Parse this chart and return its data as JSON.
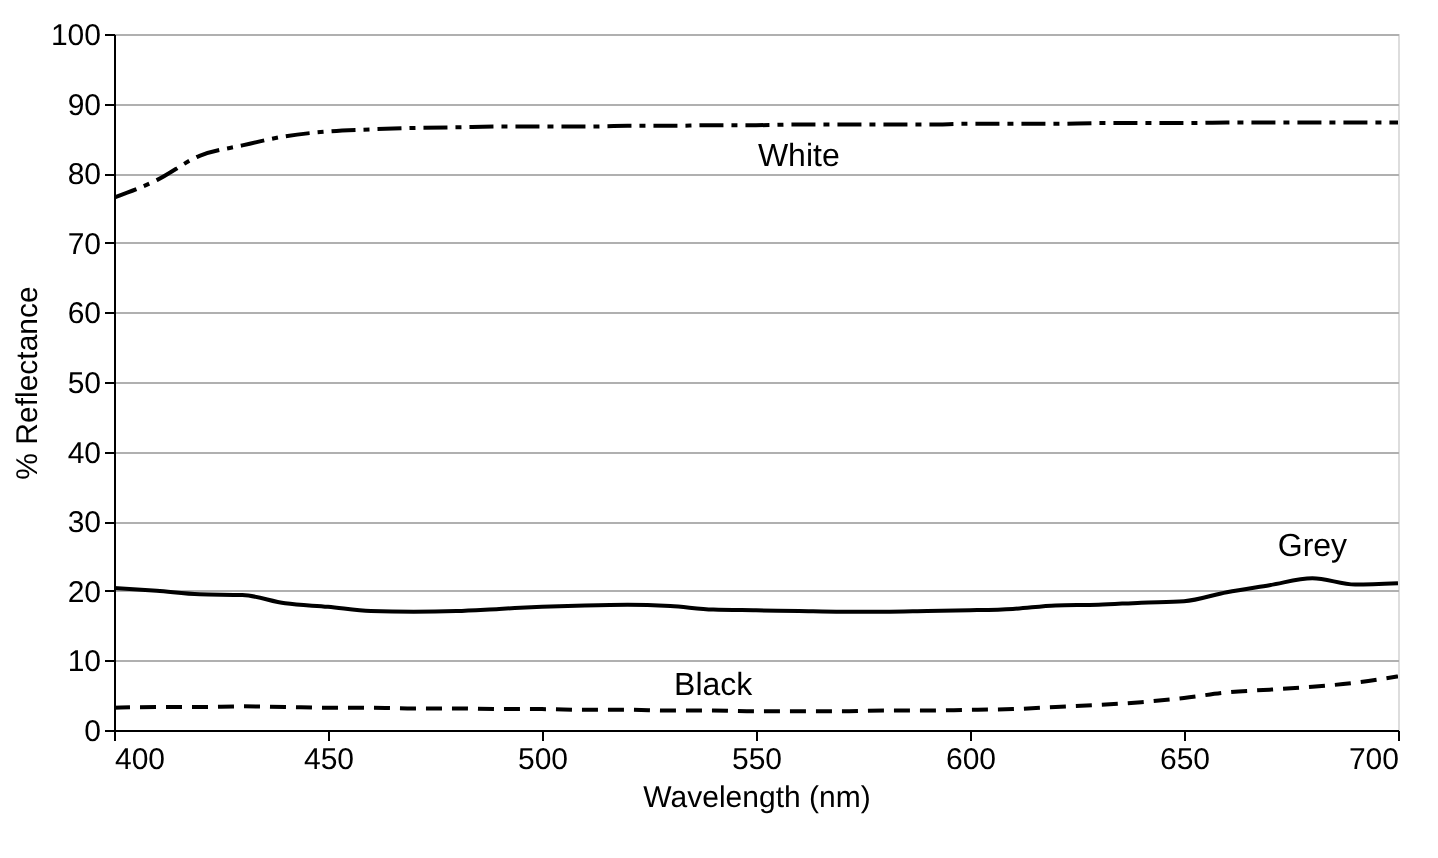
{
  "chart_data": {
    "type": "line",
    "xlabel": "Wavelength (nm)",
    "ylabel": "% Reflectance",
    "x": [
      400,
      410,
      420,
      430,
      440,
      450,
      460,
      470,
      480,
      490,
      500,
      510,
      520,
      530,
      540,
      550,
      560,
      570,
      580,
      590,
      600,
      610,
      620,
      630,
      640,
      650,
      660,
      670,
      680,
      690,
      700
    ],
    "series": [
      {
        "name": "White",
        "color": "#000000",
        "line_style": "dashdot",
        "values": [
          76.5,
          79,
          82.5,
          84,
          85.3,
          86,
          86.3,
          86.5,
          86.6,
          86.7,
          86.7,
          86.7,
          86.8,
          86.8,
          86.9,
          86.9,
          87,
          87,
          87,
          87,
          87.1,
          87.1,
          87.1,
          87.2,
          87.2,
          87.2,
          87.3,
          87.3,
          87.3,
          87.3,
          87.3
        ]
      },
      {
        "name": "Grey",
        "color": "#000000",
        "line_style": "solid",
        "values": [
          20.4,
          20,
          19.5,
          19.4,
          18.2,
          17.7,
          17.1,
          17,
          17.1,
          17.4,
          17.7,
          17.9,
          18,
          17.8,
          17.3,
          17.2,
          17.1,
          17,
          17,
          17.1,
          17.2,
          17.4,
          17.9,
          18,
          18.3,
          18.5,
          19.8,
          20.8,
          21.8,
          20.9,
          21.1
        ]
      },
      {
        "name": "Black",
        "color": "#000000",
        "line_style": "dashed",
        "values": [
          3.2,
          3.3,
          3.3,
          3.4,
          3.3,
          3.2,
          3.2,
          3.1,
          3.1,
          3.0,
          3.0,
          2.9,
          2.9,
          2.8,
          2.8,
          2.7,
          2.7,
          2.7,
          2.8,
          2.8,
          2.9,
          3.0,
          3.3,
          3.6,
          4.0,
          4.6,
          5.4,
          5.8,
          6.2,
          6.8,
          7.7
        ]
      }
    ],
    "xlim": [
      400,
      700
    ],
    "xticks": [
      400,
      450,
      500,
      550,
      600,
      650,
      700
    ],
    "ylim": [
      0,
      100
    ],
    "yticks": [
      0,
      10,
      20,
      30,
      40,
      50,
      60,
      70,
      80,
      90,
      100
    ],
    "grid": "y"
  }
}
